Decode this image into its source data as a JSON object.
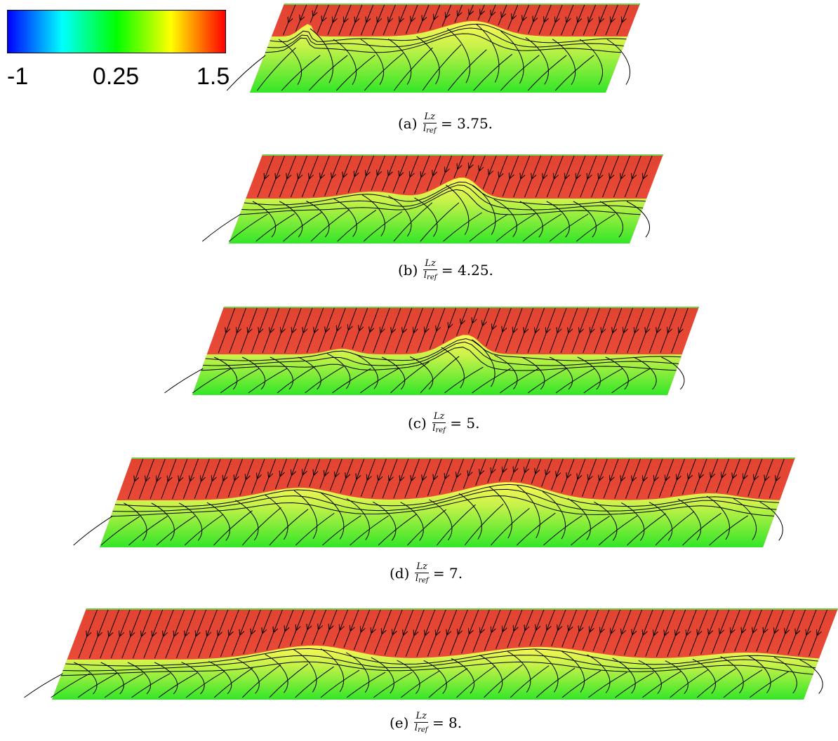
{
  "colorbar": {
    "stops": [
      "#0000ff",
      "#00ffff",
      "#00ff00",
      "#ffff00",
      "#ff0000"
    ],
    "labels": {
      "min": "-1",
      "mid": "0.25",
      "max": "1.5"
    }
  },
  "colors": {
    "upper_red": "#f04e3c",
    "upper_red_dark": "#e24432",
    "interface_yellow": "#fdf756",
    "lower_green": "#56ec3a",
    "lower_green_bright": "#32e628",
    "top_edge": "#6ed048",
    "streamline": "#000000"
  },
  "panels": [
    {
      "id": "a",
      "caption": {
        "tag": "(a)",
        "num": "Lz",
        "den_base": "l",
        "den_sub": "ref",
        "rhs": "= 3.75."
      }
    },
    {
      "id": "b",
      "caption": {
        "tag": "(b)",
        "num": "Lz",
        "den_base": "l",
        "den_sub": "ref",
        "rhs": "= 4.25."
      }
    },
    {
      "id": "c",
      "caption": {
        "tag": "(c)",
        "num": "Lz",
        "den_base": "l",
        "den_sub": "ref",
        "rhs": "= 5."
      }
    },
    {
      "id": "d",
      "caption": {
        "tag": "(d)",
        "num": "Lz",
        "den_base": "l",
        "den_sub": "ref",
        "rhs": "= 7."
      }
    },
    {
      "id": "e",
      "caption": {
        "tag": "(e)",
        "num": "Lz",
        "den_base": "l",
        "den_sub": "ref",
        "rhs": "= 8."
      }
    }
  ]
}
